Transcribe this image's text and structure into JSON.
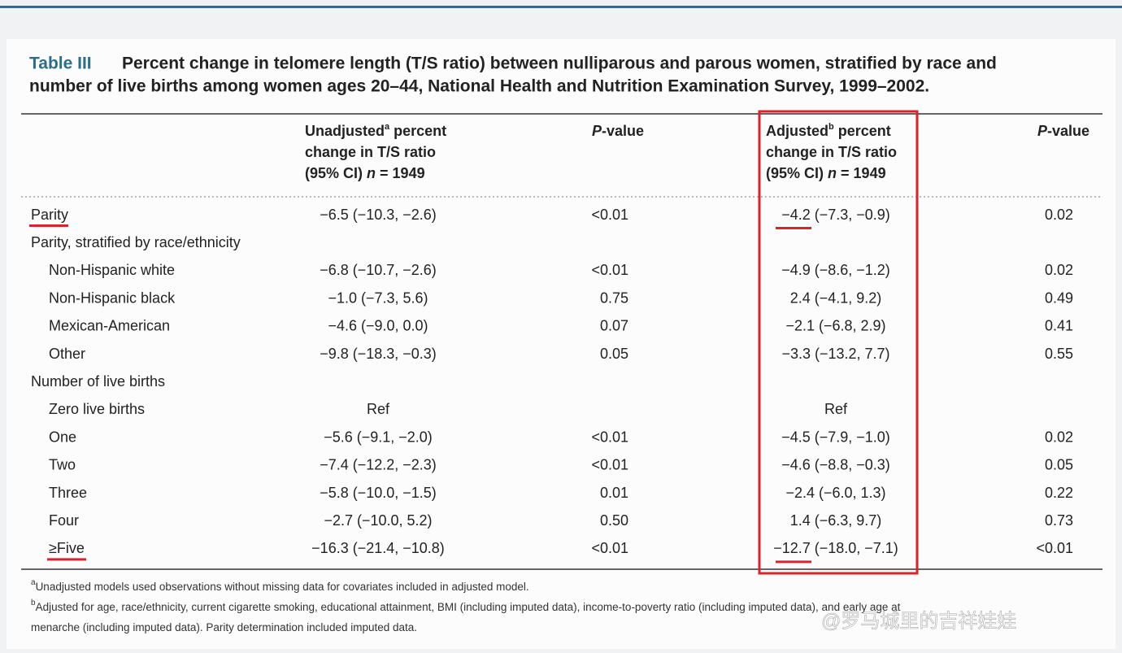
{
  "header": {
    "label": "Table III",
    "title_line1": "Percent change in telomere length (T/S ratio) between nulliparous and parous women, stratified by race and",
    "title_line2": "number of live births among women ages 20–44, National Health and Nutrition Examination Survey, 1999–2002."
  },
  "table": {
    "columns": [
      {
        "word": "Unadjusted",
        "sup": "a",
        "rest": " percent",
        "line2": "change in T/S ratio",
        "line3": "(95% CI) ",
        "n": "n",
        "eq": " = 1949"
      },
      {
        "p": "P",
        "rest": "-value"
      },
      {
        "word": "Adjusted",
        "sup": "b",
        "rest": " percent",
        "line2": "change in T/S ratio",
        "line3": "(95% CI) ",
        "n": "n",
        "eq": " = 1949"
      },
      {
        "p": "P",
        "rest": "-value"
      }
    ],
    "rows": [
      {
        "label": "Parity",
        "indent": false,
        "underline": true,
        "cells": [
          "−6.5 (−10.3, −2.6)",
          "<0.01",
          "−4.2 (−7.3, −0.9)",
          "0.02"
        ]
      },
      {
        "label": "Parity, stratified by race/ethnicity",
        "indent": false,
        "underline": false,
        "cells": []
      },
      {
        "label": "Non-Hispanic white",
        "indent": true,
        "underline": false,
        "cells": [
          "−6.8 (−10.7, −2.6)",
          "<0.01",
          "−4.9 (−8.6, −1.2)",
          "0.02"
        ]
      },
      {
        "label": "Non-Hispanic black",
        "indent": true,
        "underline": false,
        "cells": [
          "−1.0 (−7.3, 5.6)",
          "0.75",
          "2.4 (−4.1, 9.2)",
          "0.49"
        ]
      },
      {
        "label": "Mexican-American",
        "indent": true,
        "underline": false,
        "cells": [
          "−4.6 (−9.0, 0.0)",
          "0.07",
          "−2.1 (−6.8, 2.9)",
          "0.41"
        ]
      },
      {
        "label": "Other",
        "indent": true,
        "underline": false,
        "cells": [
          "−9.8 (−18.3, −0.3)",
          "0.05",
          "−3.3 (−13.2, 7.7)",
          "0.55"
        ]
      },
      {
        "label": "Number of live births",
        "indent": false,
        "underline": false,
        "cells": []
      },
      {
        "label": "Zero live births",
        "indent": true,
        "underline": false,
        "cells": [
          "Ref",
          "",
          "Ref",
          ""
        ]
      },
      {
        "label": "One",
        "indent": true,
        "underline": false,
        "cells": [
          "−5.6 (−9.1, −2.0)",
          "<0.01",
          "−4.5 (−7.9, −1.0)",
          "0.02"
        ]
      },
      {
        "label": "Two",
        "indent": true,
        "underline": false,
        "cells": [
          "−7.4 (−12.2, −2.3)",
          "<0.01",
          "−4.6 (−8.8, −0.3)",
          "0.05"
        ]
      },
      {
        "label": "Three",
        "indent": true,
        "underline": false,
        "cells": [
          "−5.8 (−10.0, −1.5)",
          "0.01",
          "−2.4 (−6.0, 1.3)",
          "0.22"
        ]
      },
      {
        "label": "Four",
        "indent": true,
        "underline": false,
        "cells": [
          "−2.7 (−10.0, 5.2)",
          "0.50",
          "1.4 (−6.3, 9.7)",
          "0.73"
        ]
      },
      {
        "label": "≥Five",
        "indent": true,
        "underline": true,
        "cells": [
          "−16.3 (−21.4, −10.8)",
          "<0.01",
          "−12.7 (−18.0, −7.1)",
          "<0.01"
        ]
      }
    ]
  },
  "footnotes": [
    {
      "mark": "a",
      "lines": [
        "Unadjusted models used observations without missing data for covariates included in adjusted model."
      ]
    },
    {
      "mark": "b",
      "lines": [
        "Adjusted for age, race/ethnicity, current cigarette smoking, educational attainment, BMI (including imputed data), income-to-poverty ratio (including imputed data), and early age at",
        "menarche (including imputed data). Parity determination included imputed data."
      ]
    }
  ],
  "watermark": "@罗马城里的吉祥娃娃"
}
